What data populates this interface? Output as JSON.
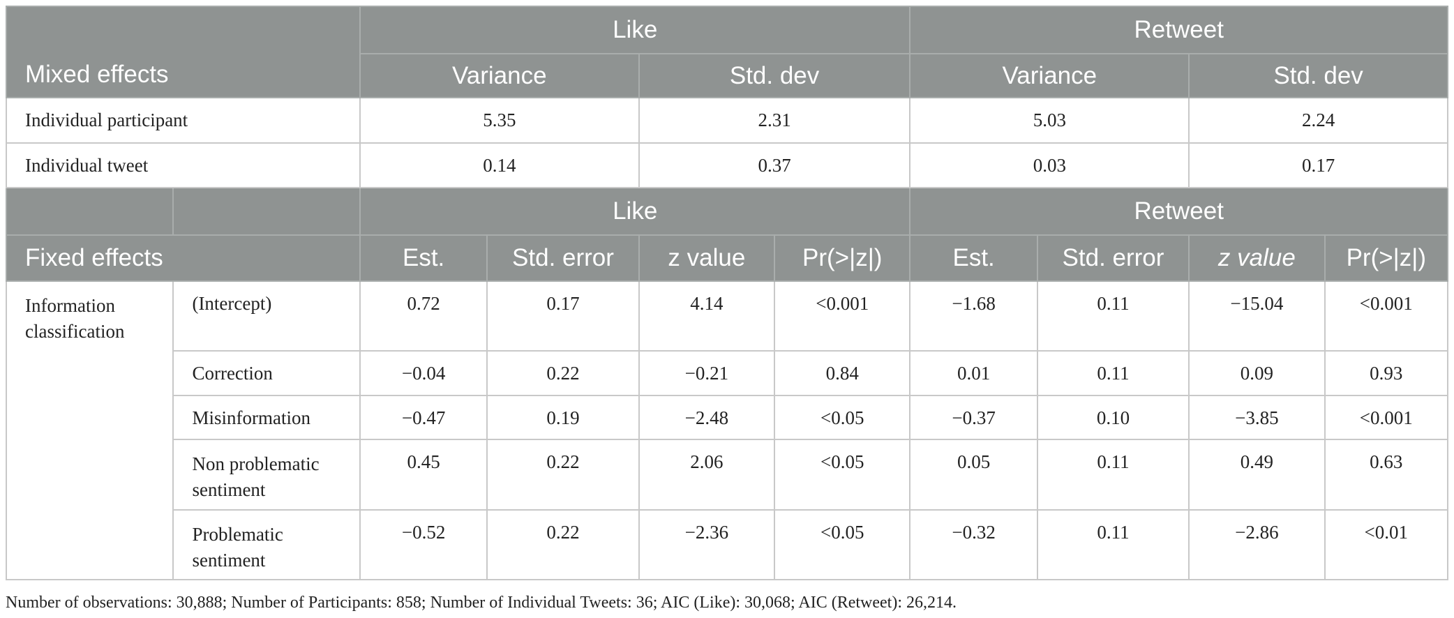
{
  "mixed": {
    "label": "Mixed effects",
    "like": "Like",
    "retweet": "Retweet",
    "variance": "Variance",
    "std_dev": "Std. dev",
    "rows": [
      {
        "name": "Individual participant",
        "like_var": "5.35",
        "like_sd": "2.31",
        "rt_var": "5.03",
        "rt_sd": "2.24"
      },
      {
        "name": "Individual tweet",
        "like_var": "0.14",
        "like_sd": "0.37",
        "rt_var": "0.03",
        "rt_sd": "0.17"
      }
    ]
  },
  "fixed": {
    "label": "Fixed effects",
    "like": "Like",
    "retweet": "Retweet",
    "est": "Est.",
    "std_error": "Std. error",
    "z_value": "z value",
    "pr": "Pr(>|z|)",
    "group": "Information classification",
    "rows": [
      {
        "term": "(Intercept)",
        "l_est": "0.72",
        "l_se": "0.17",
        "l_z": "4.14",
        "l_p": "<0.001",
        "r_est": "−1.68",
        "r_se": "0.11",
        "r_z": "−15.04",
        "r_p": "<0.001"
      },
      {
        "term": "Correction",
        "l_est": "−0.04",
        "l_se": "0.22",
        "l_z": "−0.21",
        "l_p": "0.84",
        "r_est": "0.01",
        "r_se": "0.11",
        "r_z": "0.09",
        "r_p": "0.93"
      },
      {
        "term": "Misinformation",
        "l_est": "−0.47",
        "l_se": "0.19",
        "l_z": "−2.48",
        "l_p": "<0.05",
        "r_est": "−0.37",
        "r_se": "0.10",
        "r_z": "−3.85",
        "r_p": "<0.001"
      },
      {
        "term": "Non problematic sentiment",
        "l_est": "0.45",
        "l_se": "0.22",
        "l_z": "2.06",
        "l_p": "<0.05",
        "r_est": "0.05",
        "r_se": "0.11",
        "r_z": "0.49",
        "r_p": "0.63"
      },
      {
        "term": "Problematic sentiment",
        "l_est": "−0.52",
        "l_se": "0.22",
        "l_z": "−2.36",
        "l_p": "<0.05",
        "r_est": "−0.32",
        "r_se": "0.11",
        "r_z": "−2.86",
        "r_p": "<0.01"
      }
    ]
  },
  "footnote": "Number of observations: 30,888; Number of Participants: 858; Number of Individual Tweets: 36; AIC (Like): 30,068; AIC (Retweet): 26,214."
}
